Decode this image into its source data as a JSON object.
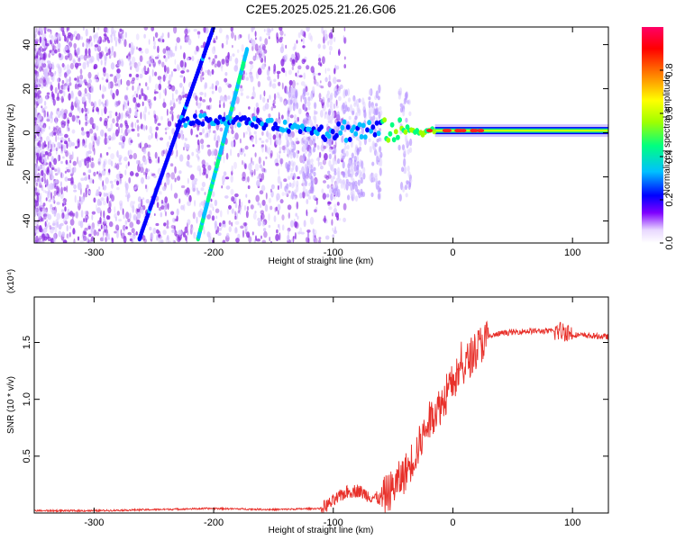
{
  "chart_data": [
    {
      "type": "heatmap",
      "title": "C2E5.2025.025.21.26.G06",
      "xlabel": "Height of straight line (km)",
      "ylabel": "Frequency (Hz)",
      "xlim": [
        -350,
        130
      ],
      "ylim": [
        -50,
        48
      ],
      "xticks": [
        -300,
        -200,
        -100,
        0,
        100
      ],
      "xtick_labels": [
        "-300",
        "-200",
        "-100",
        "0",
        "100"
      ],
      "yticks": [
        -40,
        -20,
        0,
        20,
        40
      ],
      "ytick_labels": [
        "-40",
        "-20",
        "0",
        "20",
        "40"
      ],
      "colorbar": {
        "label": "Normalized spectral amplitude",
        "range": [
          0,
          1
        ],
        "ticks": [
          0.0,
          0.2,
          0.4,
          0.6,
          0.8
        ],
        "tick_labels": [
          "0.0",
          "0.2",
          "0.4",
          "0.6",
          "0.8"
        ],
        "colormap": [
          "#ffffff",
          "#7f00ff",
          "#0000ff",
          "#00c0ff",
          "#00ff80",
          "#a0ff00",
          "#ffff00",
          "#ff8000",
          "#ff0000",
          "#ff0066"
        ]
      },
      "features": {
        "sloped_line_1": {
          "x": [
            -262,
            -200
          ],
          "y": [
            -48,
            48
          ]
        },
        "sloped_line_2": {
          "x": [
            -213,
            -172
          ],
          "y": [
            -48,
            38
          ]
        },
        "central_band": {
          "x": [
            -350,
            130
          ],
          "y": 1
        }
      },
      "grid": false
    },
    {
      "type": "line",
      "xlabel": "Height of straight line (km)",
      "ylabel": "SNR (10 * v/v)",
      "multiplier": "(x10⁴)",
      "xlim": [
        -350,
        130
      ],
      "ylim": [
        0,
        1.9
      ],
      "xticks": [
        -300,
        -200,
        -100,
        0,
        100
      ],
      "xtick_labels": [
        "-300",
        "-200",
        "-100",
        "0",
        "100"
      ],
      "yticks": [
        0.5,
        1.0,
        1.5
      ],
      "ytick_labels": [
        "0.5",
        "1.0",
        "1.5"
      ],
      "line_color": "#e8302a",
      "x": [
        -350,
        -300,
        -250,
        -200,
        -150,
        -110,
        -100,
        -90,
        -80,
        -70,
        -60,
        -50,
        -40,
        -30,
        -20,
        -15,
        -10,
        0,
        10,
        20,
        30,
        40,
        60,
        80,
        90,
        95,
        100,
        110,
        130
      ],
      "y": [
        0.02,
        0.02,
        0.03,
        0.04,
        0.03,
        0.04,
        0.1,
        0.18,
        0.2,
        0.15,
        0.12,
        0.22,
        0.35,
        0.55,
        0.8,
        0.9,
        0.95,
        1.15,
        1.3,
        1.45,
        1.55,
        1.58,
        1.6,
        1.6,
        1.6,
        1.6,
        1.57,
        1.56,
        1.55
      ],
      "grid": false
    }
  ]
}
